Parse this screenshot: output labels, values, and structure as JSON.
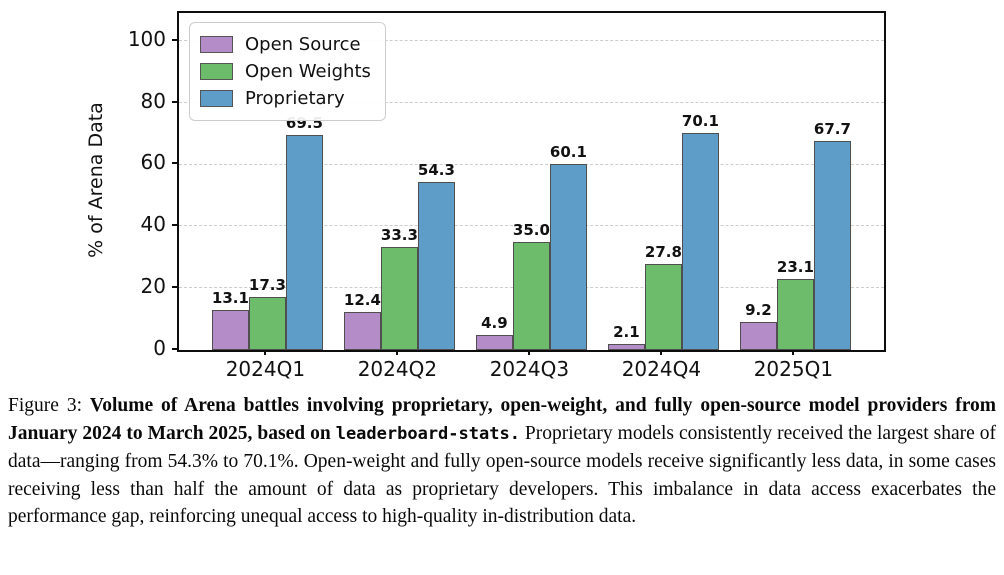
{
  "chart_data": {
    "type": "bar",
    "title": "",
    "categories": [
      "2024Q1",
      "2024Q2",
      "2024Q3",
      "2024Q4",
      "2025Q1"
    ],
    "series": [
      {
        "name": "Open Source",
        "color": "#b48cc8",
        "values": [
          13.1,
          12.4,
          4.9,
          2.1,
          9.2
        ]
      },
      {
        "name": "Open Weights",
        "color": "#6cbc6c",
        "values": [
          17.3,
          33.3,
          35.0,
          27.8,
          23.1
        ]
      },
      {
        "name": "Proprietary",
        "color": "#5f9dc9",
        "values": [
          69.5,
          54.3,
          60.1,
          70.1,
          67.7
        ]
      }
    ],
    "xlabel": "",
    "ylabel": "% of Arena Data",
    "yticks": [
      0,
      20,
      40,
      60,
      80,
      100
    ],
    "ylim": [
      0,
      109
    ],
    "grid": "dashed-horizontal",
    "legend_position": "upper-left",
    "bar_edge_color": "#4f4f4f",
    "value_label_format": "one-decimal"
  },
  "caption": {
    "segments": [
      {
        "style": "normal",
        "text": "Figure 3: "
      },
      {
        "style": "b",
        "text": "Volume of Arena battles involving proprietary, open-weight, and fully open-source model providers from January 2024 to March 2025, based on "
      },
      {
        "style": "mono",
        "text": "leaderboard-stats."
      },
      {
        "style": "normal",
        "text": " Proprietary models consistently received the largest share of data—ranging from 54.3% to 70.1%. Open-weight and fully open-source models receive significantly less data, in some cases receiving less than half the amount of data as proprietary developers. This imbalance in data access exacerbates the performance gap, reinforcing unequal access to high-quality in-distribution data."
      }
    ]
  }
}
